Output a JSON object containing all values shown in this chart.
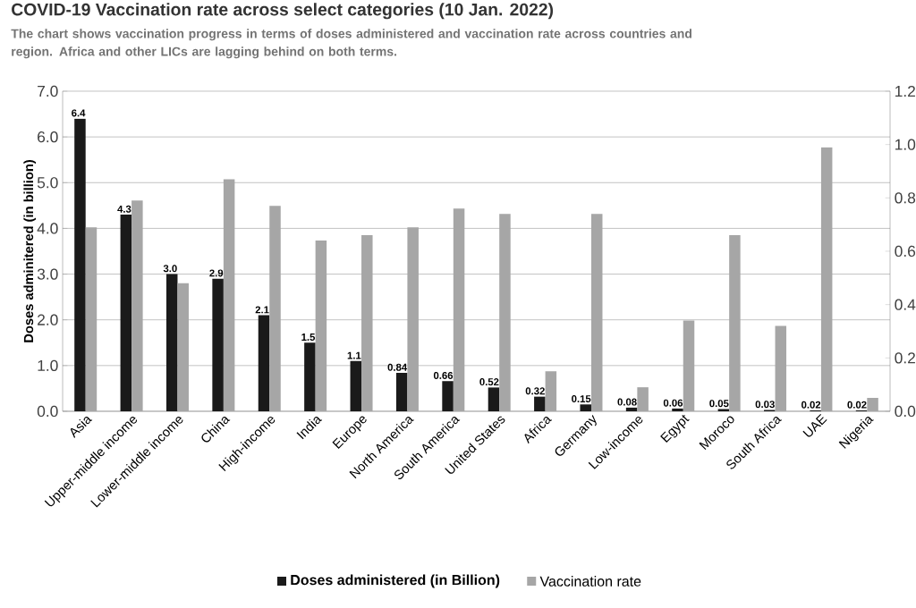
{
  "chart_data": {
    "type": "bar",
    "title": "COVID-19 Vaccination rate across select categories (10 Jan. 2022)",
    "subtitle": "The chart shows vaccination progress in terms of doses administered and vaccination rate across countries and region. Africa and other LICs are lagging behind on both terms.",
    "ylabel": "Doses adminitered (in billion)",
    "categories": [
      "Asia",
      "Upper-middle income",
      "Lower-middle income",
      "China",
      "High-income",
      "India",
      "Europe",
      "North America",
      "South America",
      "United States",
      "Africa",
      "Germany",
      "Low-income",
      "Egypt",
      "Moroco",
      "South Africa",
      "UAE",
      "Nigeria"
    ],
    "series": [
      {
        "name": "Doses administered (in Billion)",
        "color": "#1a1a1a",
        "values": [
          6.4,
          4.3,
          3.0,
          2.9,
          2.1,
          1.5,
          1.1,
          0.84,
          0.66,
          0.52,
          0.32,
          0.15,
          0.08,
          0.06,
          0.05,
          0.03,
          0.02,
          0.02
        ],
        "value_labels": [
          "6.4",
          "4.3",
          "3.0",
          "2.9",
          "2.1",
          "1.5",
          "1.1",
          "0.84",
          "0.66",
          "0.52",
          "0.32",
          "0.15",
          "0.08",
          "0.06",
          "0.05",
          "0.03",
          "0.02",
          "0.02"
        ]
      },
      {
        "name": "Vaccination rate",
        "color": "#a6a6a6",
        "axis": "y2",
        "values": [
          0.69,
          0.79,
          0.48,
          0.87,
          0.77,
          0.64,
          0.66,
          0.69,
          0.76,
          0.74,
          0.15,
          0.74,
          0.09,
          0.34,
          0.66,
          0.32,
          0.99,
          0.05
        ]
      }
    ],
    "ylim": [
      0,
      7
    ],
    "yticks": [
      {
        "value": 0,
        "label": "0.0"
      },
      {
        "value": 1,
        "label": "1.0"
      },
      {
        "value": 2,
        "label": "2.0"
      },
      {
        "value": 3,
        "label": "3.0"
      },
      {
        "value": 4,
        "label": "4.0"
      },
      {
        "value": 5,
        "label": "5.0"
      },
      {
        "value": 6,
        "label": "6.0"
      },
      {
        "value": 7,
        "label": "7.0"
      }
    ],
    "y2lim": [
      0,
      1.2
    ],
    "y2ticks": [
      {
        "value": 0,
        "label": "0.0"
      },
      {
        "value": 0.2,
        "label": "0.2"
      },
      {
        "value": 0.4,
        "label": "0.4"
      },
      {
        "value": 0.6,
        "label": "0.6"
      },
      {
        "value": 0.8,
        "label": "0.8"
      },
      {
        "value": 1,
        "label": "1.0"
      },
      {
        "value": 1.2,
        "label": "1.2"
      }
    ],
    "grid": "y",
    "legend": "bottom"
  }
}
